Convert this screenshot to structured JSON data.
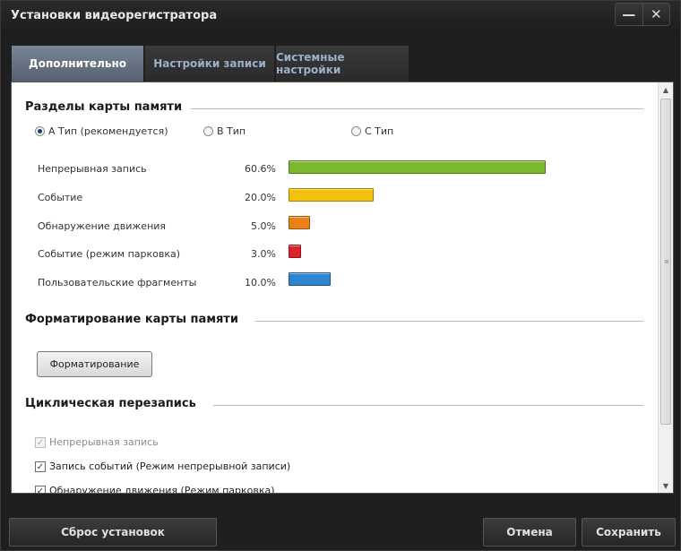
{
  "window": {
    "title": "Установки видеорегистратора",
    "minimize_glyph": "—",
    "close_glyph": "✕"
  },
  "tabs": [
    {
      "label": "Дополнительно",
      "active": true
    },
    {
      "label": "Настройки записи",
      "active": false
    },
    {
      "label": "Системные настройки",
      "active": false
    }
  ],
  "memory_partitions": {
    "title": "Разделы карты памяти",
    "types": [
      {
        "label": "А Тип (рекомендуется)",
        "selected": true
      },
      {
        "label": "В Тип",
        "selected": false
      },
      {
        "label": "С Тип",
        "selected": false
      }
    ],
    "partitions": [
      {
        "label": "Непрерывная запись",
        "percent": "60.6%",
        "value": 60.6,
        "color": "#79b82e"
      },
      {
        "label": "Событие",
        "percent": "20.0%",
        "value": 20.0,
        "color": "#f2c20c"
      },
      {
        "label": "Обнаружение движения",
        "percent": "5.0%",
        "value": 5.0,
        "color": "#e88217"
      },
      {
        "label": "Событие (режим парковка)",
        "percent": "3.0%",
        "value": 3.0,
        "color": "#d9232b"
      },
      {
        "label": "Пользовательские фрагменты",
        "percent": "10.0%",
        "value": 10.0,
        "color": "#2f86d0"
      }
    ]
  },
  "format_section": {
    "title": "Форматирование карты памяти",
    "button_label": "Форматирование"
  },
  "loop_section": {
    "title": "Циклическая перезапись",
    "options": [
      {
        "label": "Непрерывная запись",
        "checked": true,
        "disabled": true
      },
      {
        "label": "Запись событий (Режим непрерывной записи)",
        "checked": true,
        "disabled": false
      },
      {
        "label": "Обнаружение движения (Режим парковка)",
        "checked": true,
        "disabled": false
      }
    ]
  },
  "footer": {
    "reset_label": "Сброс установок",
    "cancel_label": "Отмена",
    "save_label": "Сохранить"
  }
}
